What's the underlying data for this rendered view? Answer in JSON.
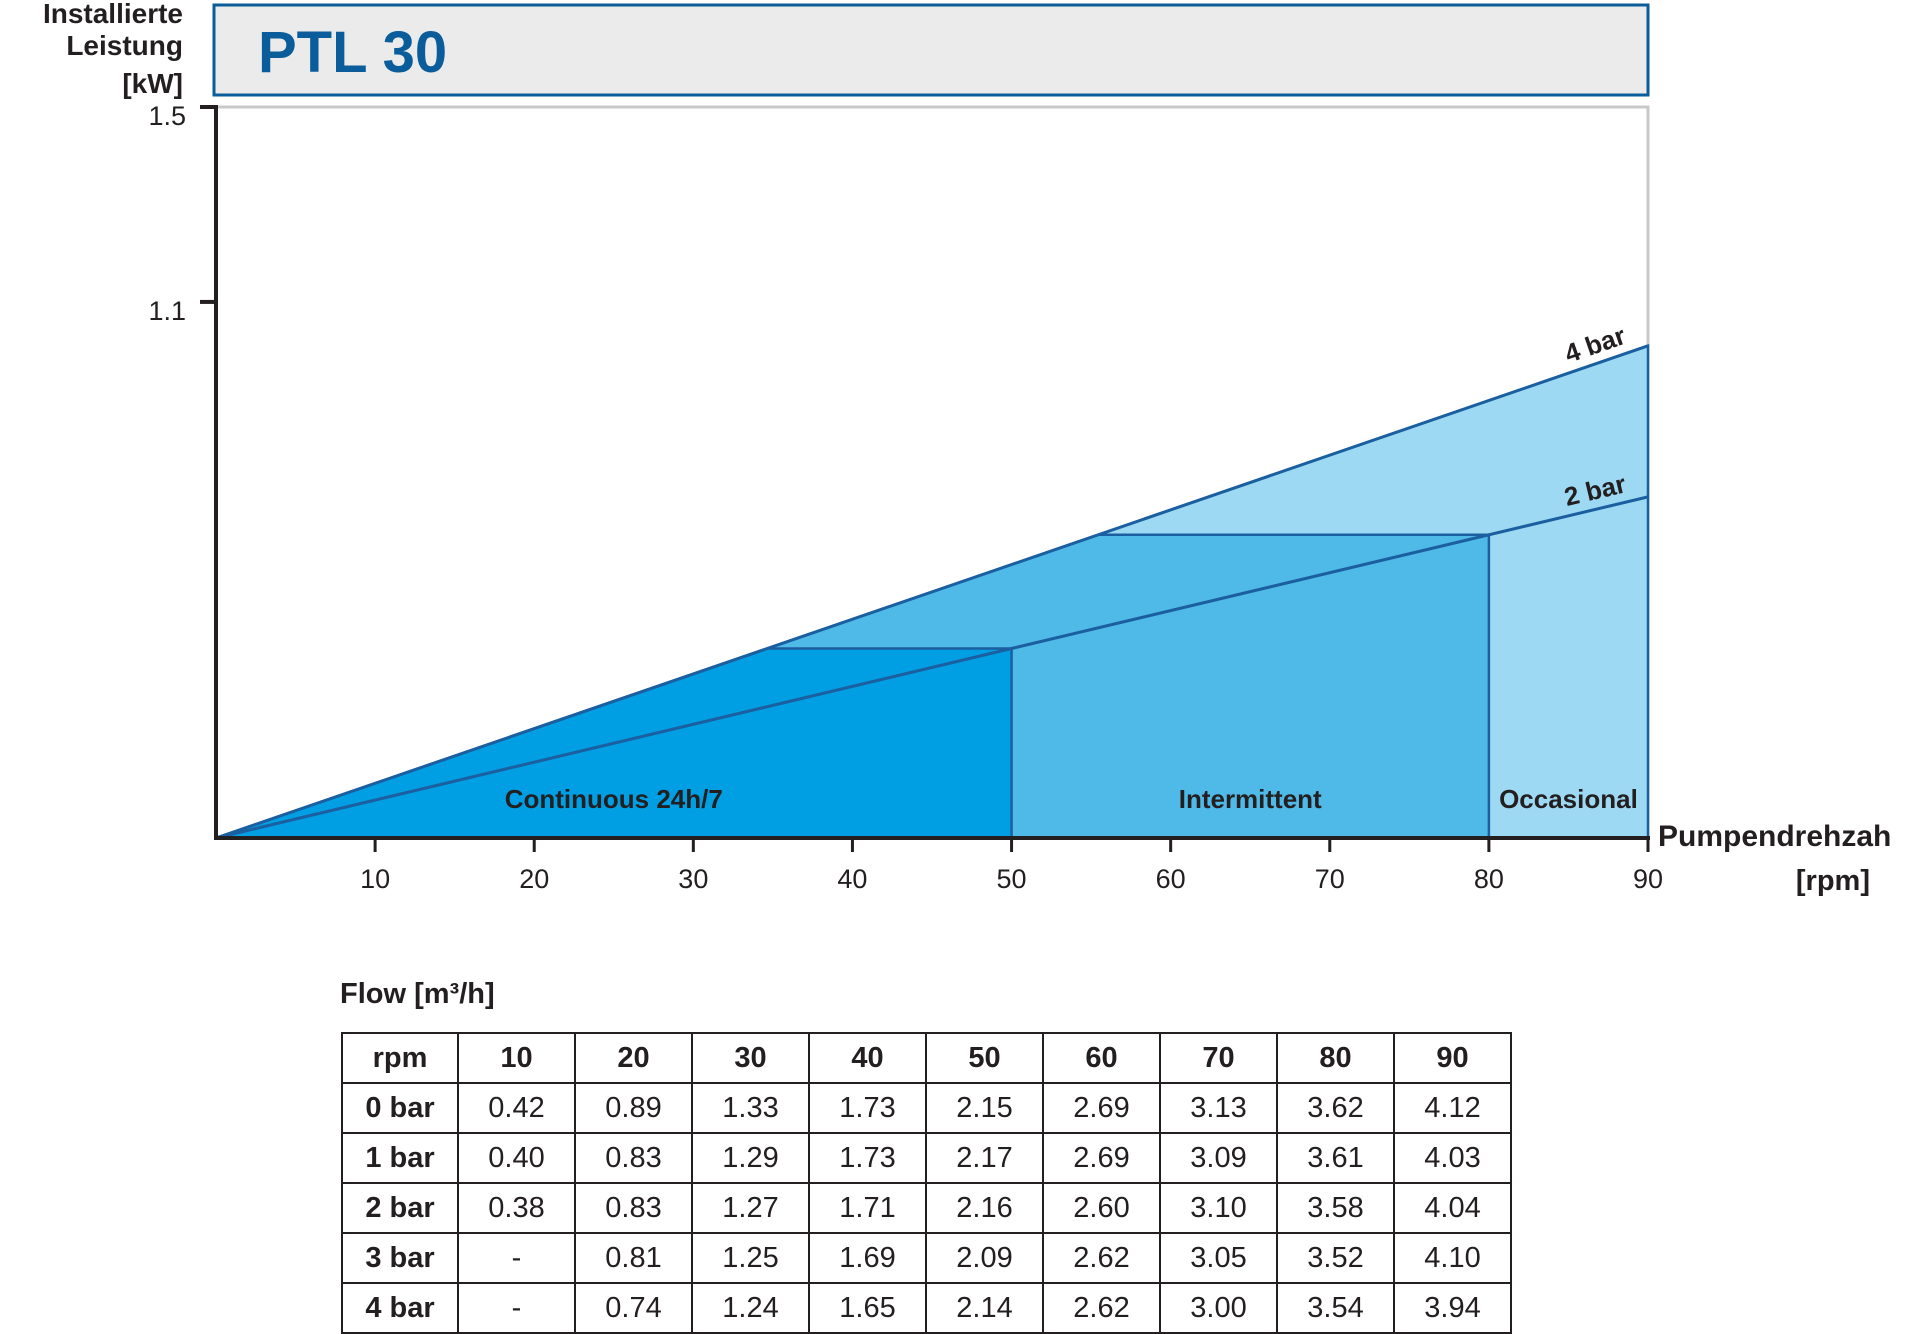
{
  "chart_data": {
    "type": "area",
    "title": "PTL 30",
    "ylabel": [
      "Installierte",
      "Leistung",
      "[kW]"
    ],
    "xlabel": "Pumpendrehzah",
    "xunit": "[rpm]",
    "xlim": [
      0,
      90
    ],
    "ylim": [
      0,
      1.5
    ],
    "xticks": [
      10,
      20,
      30,
      40,
      50,
      60,
      70,
      80,
      90
    ],
    "yticks": [
      1.1,
      1.5
    ],
    "series": [
      {
        "name": "4 bar",
        "x": [
          0,
          90
        ],
        "y": [
          0,
          1.01
        ]
      },
      {
        "name": "2 bar",
        "x": [
          0,
          90
        ],
        "y": [
          0,
          0.7
        ]
      }
    ],
    "zones": [
      {
        "name": "Continuous 24h/7",
        "x_from": 0,
        "x_to": 50,
        "color": "#009fe3"
      },
      {
        "name": "Intermittent",
        "x_from": 50,
        "x_to": 80,
        "color": "#4fb9e8"
      },
      {
        "name": "Occasional",
        "x_from": 80,
        "x_to": 90,
        "color": "#9dd9f3"
      }
    ],
    "colors": {
      "line": "#1b5fa0",
      "title_text": "#0b5c9b",
      "title_box_bg": "#ebebeb",
      "axis": "#231f20"
    }
  },
  "flow_table": {
    "title": "Flow [m³/h]",
    "header": [
      "rpm",
      "10",
      "20",
      "30",
      "40",
      "50",
      "60",
      "70",
      "80",
      "90"
    ],
    "rows": [
      [
        "0 bar",
        "0.42",
        "0.89",
        "1.33",
        "1.73",
        "2.15",
        "2.69",
        "3.13",
        "3.62",
        "4.12"
      ],
      [
        "1 bar",
        "0.40",
        "0.83",
        "1.29",
        "1.73",
        "2.17",
        "2.69",
        "3.09",
        "3.61",
        "4.03"
      ],
      [
        "2 bar",
        "0.38",
        "0.83",
        "1.27",
        "1.71",
        "2.16",
        "2.60",
        "3.10",
        "3.58",
        "4.04"
      ],
      [
        "3 bar",
        "-",
        "0.81",
        "1.25",
        "1.69",
        "2.09",
        "2.62",
        "3.05",
        "3.52",
        "4.10"
      ],
      [
        "4 bar",
        "-",
        "0.74",
        "1.24",
        "1.65",
        "2.14",
        "2.62",
        "3.00",
        "3.54",
        "3.94"
      ]
    ]
  }
}
